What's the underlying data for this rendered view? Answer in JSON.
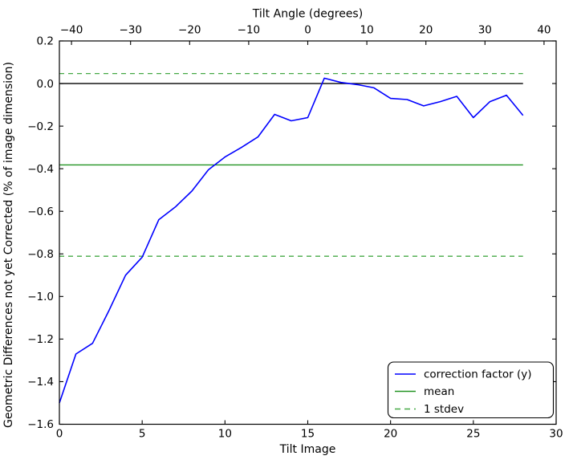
{
  "figure": {
    "background": "#ffffff"
  },
  "colors": {
    "correction_line": "#0000ff",
    "mean_line": "#229322",
    "stdev_line": "#46a946",
    "zero_line": "#000000",
    "axis": "#000000"
  },
  "chart_data": {
    "type": "line",
    "xlabel": "Tilt Image",
    "ylabel": "Geometric Differences not yet Corrected (% of image dimension)",
    "xlim": [
      0,
      30
    ],
    "ylim": [
      -1.6,
      0.2
    ],
    "grid": false,
    "x_ticks": [
      {
        "value": 0,
        "label": "0"
      },
      {
        "value": 5,
        "label": "5"
      },
      {
        "value": 10,
        "label": "10"
      },
      {
        "value": 15,
        "label": "15"
      },
      {
        "value": 20,
        "label": "20"
      },
      {
        "value": 25,
        "label": "25"
      },
      {
        "value": 30,
        "label": "30"
      }
    ],
    "y_ticks": [
      {
        "value": 0.2,
        "label": "0.2"
      },
      {
        "value": 0.0,
        "label": "0.0"
      },
      {
        "value": -0.2,
        "label": "−0.2"
      },
      {
        "value": -0.4,
        "label": "−0.4"
      },
      {
        "value": -0.6,
        "label": "−0.6"
      },
      {
        "value": -0.8,
        "label": "−0.8"
      },
      {
        "value": -1.0,
        "label": "−1.0"
      },
      {
        "value": -1.2,
        "label": "−1.2"
      },
      {
        "value": -1.4,
        "label": "−1.4"
      },
      {
        "value": -1.6,
        "label": "−1.6"
      }
    ],
    "top_axis": {
      "label": "Tilt Angle (degrees)",
      "lim": [
        -42.05,
        42.05
      ],
      "ticks": [
        {
          "value": -40,
          "label": "−40"
        },
        {
          "value": -30,
          "label": "−30"
        },
        {
          "value": -20,
          "label": "−20"
        },
        {
          "value": -10,
          "label": "−10"
        },
        {
          "value": 0,
          "label": "0"
        },
        {
          "value": 10,
          "label": "10"
        },
        {
          "value": 20,
          "label": "20"
        },
        {
          "value": 30,
          "label": "30"
        },
        {
          "value": 40,
          "label": "40"
        }
      ]
    },
    "series": [
      {
        "name": "correction factor (y)",
        "style": "solid",
        "color_key": "correction_line",
        "x": [
          0,
          1,
          2,
          3,
          4,
          5,
          6,
          7,
          8,
          9,
          10,
          11,
          12,
          13,
          14,
          15,
          16,
          17,
          18,
          19,
          20,
          21,
          22,
          23,
          24,
          25,
          26,
          27,
          28
        ],
        "y": [
          -1.5,
          -1.27,
          -1.22,
          -1.065,
          -0.9,
          -0.815,
          -0.64,
          -0.58,
          -0.505,
          -0.405,
          -0.345,
          -0.3,
          -0.25,
          -0.145,
          -0.175,
          -0.16,
          0.025,
          0.005,
          -0.005,
          -0.02,
          -0.07,
          -0.075,
          -0.105,
          -0.085,
          -0.06,
          -0.16,
          -0.085,
          -0.055,
          -0.15
        ]
      }
    ],
    "reference_lines": {
      "x_range": [
        0,
        28
      ],
      "zero": {
        "value": 0.0,
        "style": "solid",
        "color_key": "zero_line"
      },
      "mean": {
        "value": -0.382,
        "style": "solid",
        "color_key": "mean_line"
      },
      "stdev_upper": {
        "value": 0.047,
        "style": "dashed",
        "color_key": "stdev_line"
      },
      "stdev_lower": {
        "value": -0.811,
        "style": "dashed",
        "color_key": "stdev_line"
      }
    },
    "legend": {
      "position": "lower right",
      "entries": [
        {
          "label": "correction factor (y)",
          "style": "solid",
          "color_key": "correction_line"
        },
        {
          "label": "mean",
          "style": "solid",
          "color_key": "mean_line"
        },
        {
          "label": "1 stdev",
          "style": "dashed",
          "color_key": "stdev_line"
        }
      ]
    }
  }
}
